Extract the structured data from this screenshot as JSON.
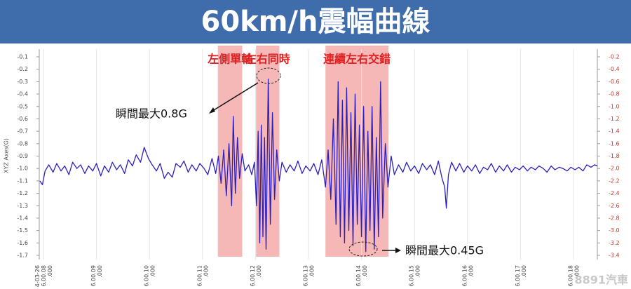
{
  "chart_data": {
    "type": "line",
    "title": "60km/h震幅曲線",
    "y_label": "XYZ Axes(G)",
    "watermark": "8891汽車",
    "xlim": [
      7.92,
      18.45
    ],
    "xticks": [
      {
        "value": 8,
        "label": "4-03-26 6.00.08 .000"
      },
      {
        "value": 9,
        "label": "6.00.09 .000"
      },
      {
        "value": 10,
        "label": "6.00.10 .000"
      },
      {
        "value": 11,
        "label": "6.00.11 .000"
      },
      {
        "value": 12,
        "label": "6.00.12 .000"
      },
      {
        "value": 13,
        "label": "6.00.13 .000"
      },
      {
        "value": 14,
        "label": "6.00.14 .000"
      },
      {
        "value": 15,
        "label": "6.00.15 .000"
      },
      {
        "value": 16,
        "label": "6.00.16 .000"
      },
      {
        "value": 17,
        "label": "6.00.17 .000"
      },
      {
        "value": 18,
        "label": "6.00.18 .000"
      }
    ],
    "ylim": [
      -1.7,
      -0.1
    ],
    "yticks": [
      -0.1,
      -0.2,
      -0.3,
      -0.4,
      -0.5,
      -0.6,
      -0.7,
      -0.8,
      -0.9,
      {
        "value": -1,
        "label": "-1.0"
      },
      -1.1,
      -1.2,
      -1.3,
      -1.4,
      -1.5,
      -1.6,
      -1.7
    ],
    "y2lim": [
      -3.4,
      -0.2
    ],
    "y2ticks": [
      -0.2,
      -0.4,
      -0.6,
      -0.8,
      {
        "value": -1,
        "label": "-1.0"
      },
      -1.2,
      -1.4,
      -1.6,
      -1.8,
      {
        "value": -2,
        "label": "-2.0"
      },
      -2.2,
      -2.4,
      -2.6,
      -2.8,
      {
        "value": -3,
        "label": "-3.0"
      },
      -3.2,
      -3.4
    ],
    "grid": "x",
    "highlights": [
      {
        "label": "左側單輪",
        "x": [
          11.29,
          11.75
        ]
      },
      {
        "label": "左右同時",
        "x": [
          12.01,
          12.45
        ]
      },
      {
        "label": "連續左右交錯",
        "x": [
          13.32,
          14.51
        ]
      }
    ],
    "annotations": [
      "瞬間最大0.8G",
      "瞬間最大0.45G"
    ],
    "x": [
      7.93,
      7.98,
      8.03,
      8.1,
      8.18,
      8.25,
      8.33,
      8.4,
      8.48,
      8.55,
      8.63,
      8.7,
      8.78,
      8.85,
      8.93,
      9.0,
      9.08,
      9.15,
      9.23,
      9.3,
      9.38,
      9.45,
      9.53,
      9.6,
      9.68,
      9.75,
      9.83,
      9.9,
      9.98,
      10.05,
      10.13,
      10.2,
      10.28,
      10.35,
      10.43,
      10.5,
      10.58,
      10.65,
      10.73,
      10.8,
      10.88,
      10.95,
      11.03,
      11.1,
      11.18,
      11.25,
      11.3,
      11.35,
      11.4,
      11.45,
      11.5,
      11.55,
      11.58,
      11.62,
      11.66,
      11.7,
      11.75,
      11.8,
      11.87,
      11.93,
      11.98,
      12.02,
      12.05,
      12.08,
      12.11,
      12.14,
      12.17,
      12.2,
      12.24,
      12.28,
      12.32,
      12.36,
      12.4,
      12.45,
      12.5,
      12.58,
      12.65,
      12.73,
      12.8,
      12.88,
      12.95,
      13.03,
      13.1,
      13.18,
      13.25,
      13.32,
      13.37,
      13.42,
      13.47,
      13.52,
      13.56,
      13.6,
      13.64,
      13.68,
      13.72,
      13.76,
      13.8,
      13.84,
      13.88,
      13.92,
      13.96,
      14.0,
      14.04,
      14.08,
      14.12,
      14.16,
      14.2,
      14.24,
      14.28,
      14.32,
      14.36,
      14.4,
      14.45,
      14.5,
      14.56,
      14.62,
      14.7,
      14.78,
      14.85,
      14.93,
      15.0,
      15.08,
      15.15,
      15.23,
      15.3,
      15.38,
      15.45,
      15.52,
      15.57,
      15.6,
      15.64,
      15.7,
      15.78,
      15.85,
      15.93,
      16.0,
      16.08,
      16.15,
      16.23,
      16.3,
      16.38,
      16.45,
      16.53,
      16.6,
      16.68,
      16.75,
      16.83,
      16.9,
      16.98,
      17.05,
      17.13,
      17.2,
      17.28,
      17.35,
      17.43,
      17.5,
      17.58,
      17.65,
      17.73,
      17.8,
      17.88,
      17.95,
      18.03,
      18.1,
      18.18,
      18.25,
      18.33,
      18.4,
      18.45
    ],
    "series": [
      {
        "name": "XYZ",
        "color": "#2a1fc0",
        "values": [
          -1.1,
          -1.13,
          -1.02,
          -0.97,
          -1.03,
          -0.96,
          -1.02,
          -0.98,
          -1.05,
          -0.95,
          -1.0,
          -0.97,
          -1.04,
          -0.98,
          -1.02,
          -0.96,
          -1.06,
          -0.98,
          -1.03,
          -0.95,
          -1.01,
          -0.97,
          -1.04,
          -0.93,
          -0.98,
          -0.89,
          -0.95,
          -0.83,
          -0.92,
          -0.97,
          -1.02,
          -0.96,
          -1.08,
          -1.03,
          -1.07,
          -0.96,
          -0.99,
          -0.94,
          -1.03,
          -0.97,
          -1.02,
          -0.96,
          -1.0,
          -1.05,
          -0.92,
          -1.04,
          -0.9,
          -1.12,
          -0.85,
          -1.22,
          -0.8,
          -1.3,
          -0.58,
          -1.2,
          -0.75,
          -1.08,
          -0.88,
          -1.02,
          -0.97,
          -1.05,
          -0.95,
          -1.3,
          -0.7,
          -1.6,
          -0.65,
          -1.55,
          -0.75,
          -1.65,
          -0.28,
          -1.45,
          -0.55,
          -1.25,
          -0.85,
          -1.1,
          -0.95,
          -1.03,
          -0.97,
          -1.02,
          -0.94,
          -1.04,
          -0.98,
          -1.02,
          -0.96,
          -1.05,
          -0.93,
          -1.15,
          -0.85,
          -1.25,
          -0.6,
          -1.45,
          -0.3,
          -1.55,
          -0.45,
          -1.6,
          -0.35,
          -1.5,
          -0.55,
          -1.62,
          -0.4,
          -1.45,
          -0.65,
          -1.55,
          -0.5,
          -1.67,
          -0.7,
          -1.5,
          -0.5,
          -1.65,
          -0.75,
          -1.55,
          -0.3,
          -1.4,
          -0.8,
          -1.15,
          -0.9,
          -1.05,
          -0.97,
          -1.03,
          -0.95,
          -1.02,
          -0.98,
          -1.04,
          -0.96,
          -1.01,
          -0.97,
          -1.05,
          -0.94,
          -1.08,
          -1.15,
          -1.32,
          -1.05,
          -0.95,
          -1.02,
          -0.96,
          -1.03,
          -0.98,
          -1.02,
          -0.97,
          -1.04,
          -0.99,
          -1.01,
          -0.96,
          -1.03,
          -0.98,
          -1.02,
          -0.97,
          -1.03,
          -0.99,
          -1.01,
          -0.98,
          -1.02,
          -0.99,
          -1.01,
          -0.98,
          -1.0,
          -1.03,
          -0.98,
          -1.01,
          -0.99,
          -1.0,
          -1.02,
          -0.99,
          -1.01,
          -0.99,
          -1.02,
          -0.97,
          -0.99,
          -0.97,
          -0.98
        ]
      }
    ]
  }
}
